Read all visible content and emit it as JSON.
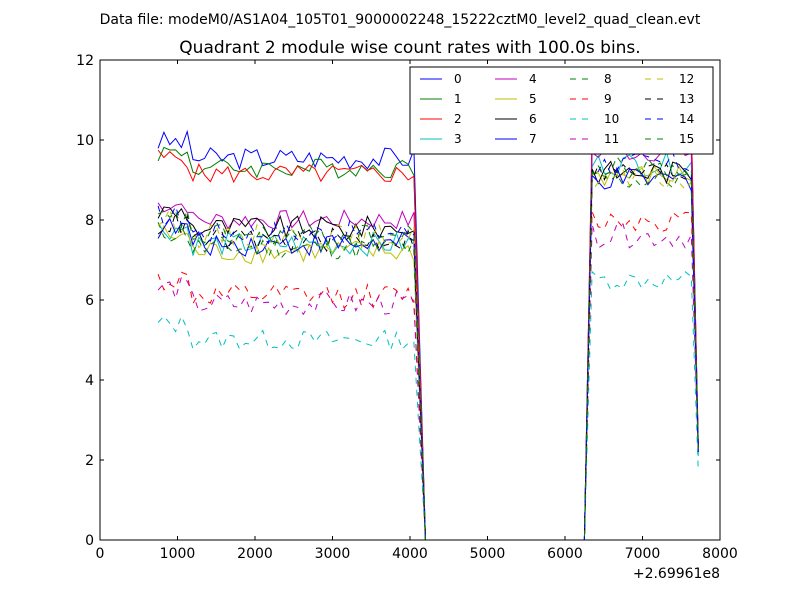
{
  "chart_data": {
    "type": "line",
    "suptitle": "Data file: modeM0/AS1A04_105T01_9000002248_15222cztM0_level2_quad_clean.evt",
    "title": "Quadrant 2 module wise count rates with 100.0s bins.",
    "xlabel": "",
    "ylabel": "",
    "xlim": [
      0,
      8000
    ],
    "ylim": [
      0,
      12
    ],
    "x_ticks": [
      0,
      1000,
      2000,
      3000,
      4000,
      5000,
      6000,
      7000,
      8000
    ],
    "y_ticks": [
      0,
      2,
      4,
      6,
      8,
      10,
      12
    ],
    "x_tick_labels": [
      "0",
      "1000",
      "2000",
      "3000",
      "4000",
      "5000",
      "6000",
      "7000",
      "8000"
    ],
    "y_tick_labels": [
      "0",
      "2",
      "4",
      "6",
      "8",
      "10",
      "12"
    ],
    "x_offset_label": "+2.69961e8",
    "legend_location": "top-right",
    "gap": {
      "drop_end": 4200,
      "rise_start": 6250
    },
    "segment1": {
      "start": 750,
      "end": 4100,
      "step": 75
    },
    "segment2": {
      "start": 6350,
      "end": 7700,
      "step": 80
    },
    "series": [
      {
        "name": "0",
        "color": "#0000ff",
        "style": "solid",
        "seg1_level": 9.55,
        "seg2_level": 10.2,
        "amplitude": 0.28,
        "end_value": 2.2
      },
      {
        "name": "1",
        "color": "#008000",
        "style": "solid",
        "seg1_level": 9.3,
        "seg2_level": 10.0,
        "amplitude": 0.25,
        "end_value": 2.3
      },
      {
        "name": "2",
        "color": "#ff0000",
        "style": "solid",
        "seg1_level": 9.15,
        "seg2_level": 10.3,
        "amplitude": 0.25,
        "end_value": 2.4
      },
      {
        "name": "3",
        "color": "#00bfbf",
        "style": "solid",
        "seg1_level": 7.4,
        "seg2_level": 9.4,
        "amplitude": 0.3,
        "end_value": 2.1
      },
      {
        "name": "4",
        "color": "#bf00bf",
        "style": "solid",
        "seg1_level": 8.0,
        "seg2_level": 9.7,
        "amplitude": 0.25,
        "end_value": 2.3
      },
      {
        "name": "5",
        "color": "#bfbf00",
        "style": "solid",
        "seg1_level": 7.2,
        "seg2_level": 9.1,
        "amplitude": 0.3,
        "end_value": 2.2
      },
      {
        "name": "6",
        "color": "#000000",
        "style": "solid",
        "seg1_level": 7.8,
        "seg2_level": 9.2,
        "amplitude": 0.3,
        "end_value": 2.3
      },
      {
        "name": "7",
        "color": "#0000ff",
        "style": "solid",
        "seg1_level": 7.4,
        "seg2_level": 9.0,
        "amplitude": 0.3,
        "end_value": 2.2
      },
      {
        "name": "8",
        "color": "#008000",
        "style": "dashed",
        "seg1_level": 7.3,
        "seg2_level": 9.0,
        "amplitude": 0.3,
        "end_value": 2.4
      },
      {
        "name": "9",
        "color": "#ff0000",
        "style": "dashed",
        "seg1_level": 6.1,
        "seg2_level": 8.0,
        "amplitude": 0.3,
        "end_value": 2.3
      },
      {
        "name": "10",
        "color": "#00bfbf",
        "style": "dashed",
        "seg1_level": 5.0,
        "seg2_level": 6.5,
        "amplitude": 0.25,
        "end_value": 1.7
      },
      {
        "name": "11",
        "color": "#bf00bf",
        "style": "dashed",
        "seg1_level": 5.9,
        "seg2_level": 7.6,
        "amplitude": 0.3,
        "end_value": 2.2
      },
      {
        "name": "12",
        "color": "#bfbf00",
        "style": "dashed",
        "seg1_level": 7.6,
        "seg2_level": 9.0,
        "amplitude": 0.3,
        "end_value": 2.3
      },
      {
        "name": "13",
        "color": "#000000",
        "style": "dashed",
        "seg1_level": 7.5,
        "seg2_level": 9.2,
        "amplitude": 0.3,
        "end_value": 2.3
      },
      {
        "name": "14",
        "color": "#0000ff",
        "style": "dashed",
        "seg1_level": 7.7,
        "seg2_level": 9.4,
        "amplitude": 0.3,
        "end_value": 2.2
      },
      {
        "name": "15",
        "color": "#008000",
        "style": "dashed",
        "seg1_level": 7.6,
        "seg2_level": 9.3,
        "amplitude": 0.3,
        "end_value": 2.3
      }
    ]
  }
}
